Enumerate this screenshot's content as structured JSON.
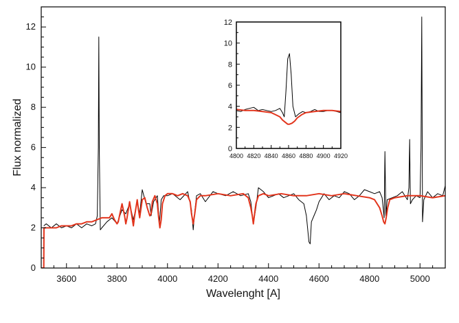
{
  "chart_data": [
    {
      "type": "line",
      "title": "",
      "xlabel": "Wavelenght [A]",
      "ylabel": "Flux normalized",
      "xlim": [
        3500,
        5100
      ],
      "ylim": [
        0,
        13
      ],
      "x_ticks": [
        3600,
        3800,
        4000,
        4200,
        4400,
        4600,
        4800,
        5000
      ],
      "y_ticks": [
        0,
        2,
        4,
        6,
        8,
        10,
        12
      ],
      "grid": false,
      "legend": "none",
      "series": [
        {
          "color": "#000000",
          "x": [
            3510,
            3520,
            3540,
            3560,
            3580,
            3600,
            3620,
            3640,
            3660,
            3680,
            3700,
            3715,
            3722,
            3726,
            3728,
            3730,
            3734,
            3740,
            3760,
            3780,
            3800,
            3820,
            3835,
            3850,
            3865,
            3880,
            3890,
            3900,
            3915,
            3930,
            3935,
            3945,
            3960,
            3968,
            3975,
            3985,
            4000,
            4020,
            4050,
            4080,
            4095,
            4102,
            4108,
            4115,
            4130,
            4150,
            4180,
            4200,
            4230,
            4260,
            4290,
            4320,
            4330,
            4340,
            4350,
            4360,
            4380,
            4400,
            4420,
            4440,
            4460,
            4480,
            4500,
            4520,
            4540,
            4550,
            4560,
            4565,
            4570,
            4580,
            4590,
            4600,
            4620,
            4640,
            4660,
            4680,
            4700,
            4720,
            4740,
            4760,
            4780,
            4800,
            4820,
            4840,
            4850,
            4858,
            4861,
            4865,
            4870,
            4890,
            4910,
            4930,
            4950,
            4956,
            4959,
            4962,
            4970,
            4985,
            5000,
            5004,
            5007,
            5010,
            5015,
            5030,
            5050,
            5070,
            5090,
            5100
          ],
          "y": [
            2.1,
            2.2,
            2.0,
            2.2,
            2.0,
            2.1,
            2.0,
            2.2,
            2.0,
            2.2,
            2.1,
            2.2,
            2.6,
            6.0,
            11.5,
            6.0,
            1.9,
            2.0,
            2.3,
            2.5,
            2.2,
            2.9,
            2.7,
            3.2,
            2.4,
            3.3,
            2.7,
            3.9,
            3.2,
            3.2,
            2.6,
            3.3,
            3.6,
            2.2,
            3.4,
            3.6,
            3.6,
            3.7,
            3.4,
            3.8,
            2.9,
            1.9,
            2.8,
            3.6,
            3.7,
            3.3,
            3.8,
            3.7,
            3.6,
            3.8,
            3.6,
            3.7,
            3.3,
            2.2,
            3.0,
            4.0,
            3.8,
            3.5,
            3.6,
            3.7,
            3.5,
            3.6,
            3.7,
            3.4,
            3.2,
            2.6,
            1.3,
            1.2,
            2.3,
            2.6,
            2.9,
            3.3,
            3.7,
            3.4,
            3.6,
            3.5,
            3.8,
            3.7,
            3.4,
            3.6,
            3.9,
            3.8,
            3.7,
            3.8,
            3.5,
            2.5,
            5.8,
            2.6,
            3.4,
            3.5,
            3.6,
            3.8,
            3.4,
            4.0,
            6.4,
            3.2,
            3.4,
            3.6,
            3.5,
            6.0,
            12.5,
            2.3,
            3.4,
            3.8,
            3.5,
            3.7,
            3.6,
            4.1
          ]
        },
        {
          "color": "#e2341c",
          "x": [
            3500,
            3510,
            3511,
            3520,
            3540,
            3560,
            3580,
            3600,
            3620,
            3640,
            3660,
            3680,
            3700,
            3720,
            3740,
            3760,
            3770,
            3780,
            3790,
            3800,
            3805,
            3810,
            3820,
            3830,
            3835,
            3840,
            3850,
            3860,
            3865,
            3870,
            3880,
            3885,
            3890,
            3900,
            3910,
            3920,
            3930,
            3935,
            3940,
            3950,
            3960,
            3965,
            3970,
            3975,
            3980,
            3990,
            4000,
            4020,
            4040,
            4060,
            4080,
            4090,
            4095,
            4102,
            4108,
            4115,
            4130,
            4150,
            4200,
            4250,
            4300,
            4320,
            4330,
            4336,
            4340,
            4345,
            4350,
            4360,
            4380,
            4400,
            4450,
            4500,
            4550,
            4600,
            4650,
            4700,
            4750,
            4800,
            4820,
            4840,
            4850,
            4856,
            4861,
            4866,
            4872,
            4880,
            4900,
            4950,
            5000,
            5050,
            5100
          ],
          "y": [
            0.0,
            0.0,
            2.0,
            2.0,
            2.0,
            2.0,
            2.1,
            2.1,
            2.1,
            2.2,
            2.2,
            2.3,
            2.3,
            2.4,
            2.5,
            2.5,
            2.5,
            2.7,
            2.4,
            2.2,
            2.3,
            2.6,
            3.2,
            2.6,
            2.2,
            2.5,
            3.3,
            2.5,
            2.1,
            2.6,
            3.4,
            2.9,
            2.5,
            3.4,
            3.5,
            3.0,
            2.6,
            2.7,
            3.3,
            3.6,
            3.2,
            2.5,
            2.0,
            2.4,
            3.2,
            3.6,
            3.7,
            3.7,
            3.6,
            3.7,
            3.6,
            3.3,
            2.7,
            2.2,
            2.7,
            3.4,
            3.6,
            3.6,
            3.7,
            3.6,
            3.7,
            3.5,
            3.0,
            2.6,
            2.2,
            2.7,
            3.2,
            3.6,
            3.7,
            3.6,
            3.7,
            3.6,
            3.6,
            3.7,
            3.6,
            3.7,
            3.6,
            3.5,
            3.4,
            3.0,
            2.6,
            2.3,
            2.2,
            2.5,
            3.0,
            3.4,
            3.5,
            3.6,
            3.6,
            3.5,
            3.6
          ]
        }
      ]
    },
    {
      "type": "line",
      "title": "",
      "xlabel": "",
      "ylabel": "",
      "xlim": [
        4800,
        4920
      ],
      "ylim": [
        0,
        12
      ],
      "x_ticks": [
        4800,
        4820,
        4840,
        4860,
        4880,
        4900,
        4920
      ],
      "y_ticks": [
        0,
        2,
        4,
        6,
        8,
        10,
        12
      ],
      "grid": false,
      "legend": "none",
      "series": [
        {
          "color": "#000000",
          "x": [
            4800,
            4805,
            4810,
            4815,
            4820,
            4825,
            4830,
            4835,
            4840,
            4845,
            4850,
            4853,
            4855,
            4857,
            4859,
            4861,
            4863,
            4865,
            4868,
            4872,
            4876,
            4880,
            4885,
            4890,
            4895,
            4900,
            4905,
            4910,
            4915,
            4920
          ],
          "y": [
            3.6,
            3.5,
            3.7,
            3.8,
            3.9,
            3.6,
            3.7,
            3.6,
            3.5,
            3.6,
            3.8,
            3.4,
            3.0,
            5.5,
            8.5,
            9.0,
            7.0,
            4.0,
            3.0,
            3.3,
            3.5,
            3.4,
            3.5,
            3.7,
            3.5,
            3.5,
            3.6,
            3.6,
            3.5,
            3.4
          ]
        },
        {
          "color": "#e2341c",
          "x": [
            4800,
            4810,
            4820,
            4830,
            4840,
            4845,
            4850,
            4853,
            4856,
            4859,
            4861,
            4864,
            4867,
            4870,
            4875,
            4880,
            4890,
            4900,
            4910,
            4920
          ],
          "y": [
            3.7,
            3.6,
            3.6,
            3.5,
            3.4,
            3.2,
            3.0,
            2.7,
            2.5,
            2.3,
            2.3,
            2.4,
            2.6,
            2.9,
            3.2,
            3.4,
            3.5,
            3.6,
            3.6,
            3.5
          ]
        }
      ]
    }
  ]
}
